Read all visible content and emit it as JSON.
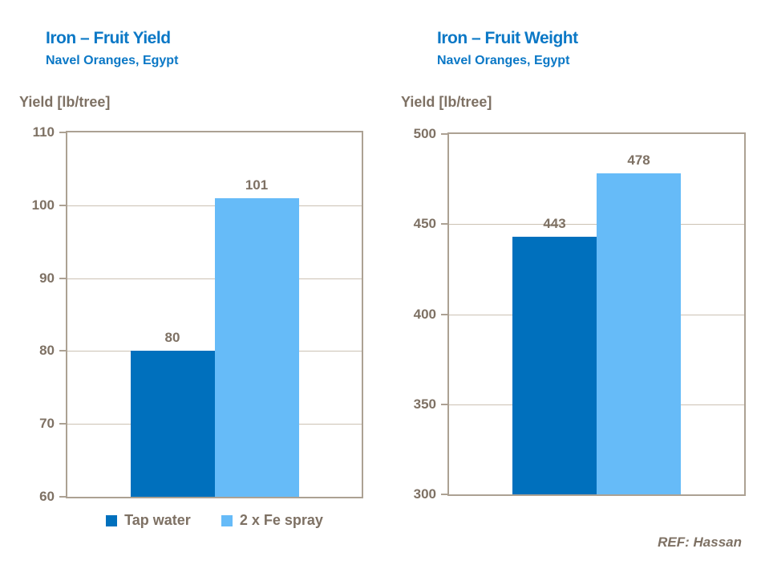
{
  "colors": {
    "title_blue": "#0B78C6",
    "bar_dark_blue": "#0070BD",
    "bar_light_blue": "#66BBF8",
    "text_brown": "#7E7164",
    "plot_border": "#ACA193",
    "gridline": "#CCC2B4"
  },
  "chart_data": [
    {
      "type": "bar",
      "title": "Iron – Fruit Yield",
      "subtitle": "Navel Oranges, Egypt",
      "ylabel": "Yield [lb/tree]",
      "categories": [
        "Tap water",
        "2 x Fe spray"
      ],
      "values": [
        80,
        101
      ],
      "data_labels": [
        "80",
        "101"
      ],
      "bar_colors": [
        "#0070BD",
        "#66BBF8"
      ],
      "ylim": [
        60,
        110
      ],
      "yticks": [
        60,
        70,
        80,
        90,
        100,
        110
      ],
      "grid": true,
      "legend_position": "bottom"
    },
    {
      "type": "bar",
      "title": "Iron – Fruit Weight",
      "subtitle": "Navel Oranges, Egypt",
      "ylabel": "Yield [lb/tree]",
      "categories": [
        "Tap water",
        "2 x Fe spray"
      ],
      "values": [
        443,
        478
      ],
      "data_labels": [
        "443",
        "478"
      ],
      "bar_colors": [
        "#0070BD",
        "#66BBF8"
      ],
      "ylim": [
        300,
        500
      ],
      "yticks": [
        300,
        350,
        400,
        450,
        500
      ],
      "grid": true,
      "legend_position": "none"
    }
  ],
  "legend": {
    "items": [
      {
        "label": "Tap water",
        "color": "#0070BD"
      },
      {
        "label": "2 x Fe spray",
        "color": "#66BBF8"
      }
    ]
  },
  "footer": {
    "ref_label": "REF: Hassan"
  }
}
